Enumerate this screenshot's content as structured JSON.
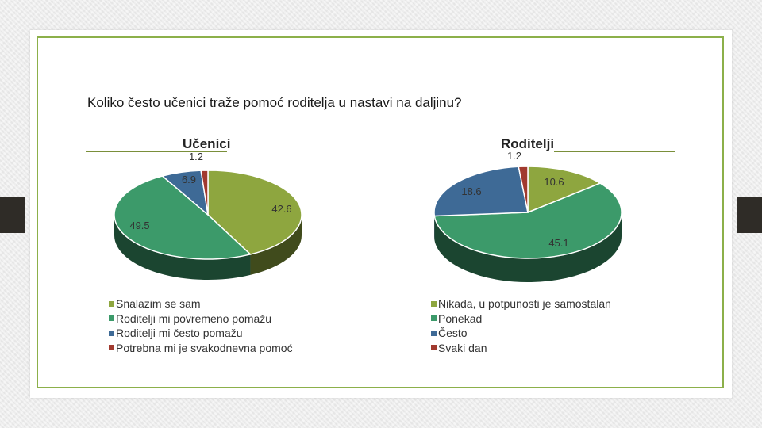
{
  "question": "Koliko često učenici traže pomoć roditelja u nastavi na daljinu?",
  "chart_data": [
    {
      "type": "pie",
      "title": "Učenici",
      "categories": [
        "Snalazim se sam",
        "Roditelji mi povremeno pomažu",
        "Roditelji mi često pomažu",
        "Potrebna mi je svakodnevna pomoć"
      ],
      "values": [
        42.6,
        49.5,
        6.9,
        1.2
      ],
      "labels": [
        "42.6",
        "49.5",
        "6.9",
        "1.2"
      ],
      "colors": [
        "#8ea63f",
        "#3c9a6a",
        "#3e6a96",
        "#a13a2f"
      ],
      "legend_position": "bottom",
      "style": "3d"
    },
    {
      "type": "pie",
      "title": "Roditelji",
      "categories": [
        "Nikada, u potpunosti je samostalan",
        "Ponekad",
        "Često",
        "Svaki dan"
      ],
      "values": [
        10.6,
        45.1,
        18.6,
        1.2
      ],
      "labels": [
        "10.6",
        "45.1",
        "18.6",
        "1.2"
      ],
      "colors": [
        "#8ea63f",
        "#3c9a6a",
        "#3e6a96",
        "#a13a2f"
      ],
      "legend_position": "bottom",
      "style": "3d"
    }
  ]
}
